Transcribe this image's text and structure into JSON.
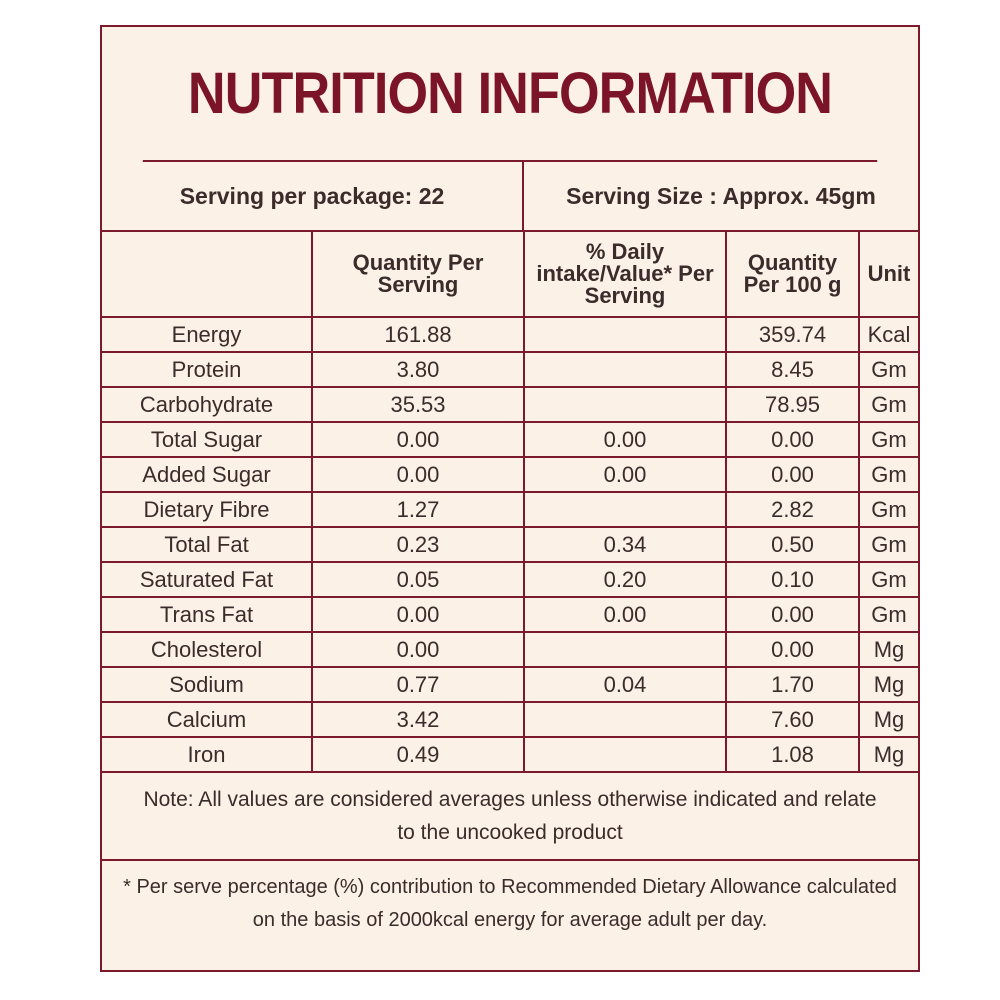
{
  "header": {
    "title": "NUTRITION INFORMATION"
  },
  "serving": {
    "per_package": "Serving per package: 22",
    "size": "Serving Size : Approx. 45gm"
  },
  "table": {
    "columns": [
      "Quantity Per Serving",
      "% Daily intake/Value* Per Serving",
      "Quantity Per 100 g",
      "Unit"
    ],
    "rows": [
      [
        "Energy",
        "161.88",
        null,
        "359.74",
        "Kcal"
      ],
      [
        "Protein",
        "3.80",
        null,
        "8.45",
        "Gm"
      ],
      [
        "Carbohydrate",
        "35.53",
        null,
        "78.95",
        "Gm"
      ],
      [
        "Total Sugar",
        "0.00",
        "0.00",
        "0.00",
        "Gm"
      ],
      [
        "Added Sugar",
        "0.00",
        "0.00",
        "0.00",
        "Gm"
      ],
      [
        "Dietary Fibre",
        "1.27",
        null,
        "2.82",
        "Gm"
      ],
      [
        "Total Fat",
        "0.23",
        "0.34",
        "0.50",
        "Gm"
      ],
      [
        "Saturated Fat",
        "0.05",
        "0.20",
        "0.10",
        "Gm"
      ],
      [
        "Trans Fat",
        "0.00",
        "0.00",
        "0.00",
        "Gm"
      ],
      [
        "Cholesterol",
        "0.00",
        null,
        "0.00",
        "Mg"
      ],
      [
        "Sodium",
        "0.77",
        "0.04",
        "1.70",
        "Mg"
      ],
      [
        "Calcium",
        "3.42",
        null,
        "7.60",
        "Mg"
      ],
      [
        "Iron",
        "0.49",
        null,
        "1.08",
        "Mg"
      ]
    ]
  },
  "note": "Note: All values are considered averages unless otherwise indicated and relate to the uncooked product",
  "footnote": "* Per serve percentage (%) contribution to Recommended Dietary Allowance calculated on the basis of 2000kcal energy for average adult per day."
}
